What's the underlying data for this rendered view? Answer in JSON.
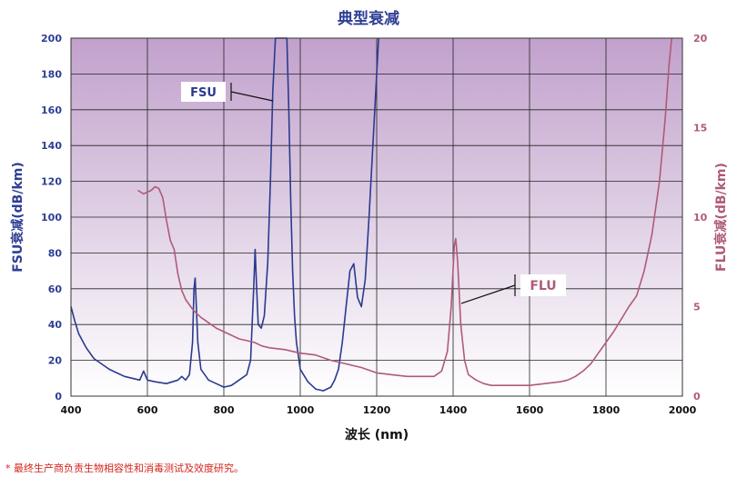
{
  "chart_data": {
    "type": "line",
    "title": "典型衰减",
    "xlabel": "波长 (nm)",
    "ylabel_left": "FSU衰减(dB/km)",
    "ylabel_right": "FLU衰减(dB/km)",
    "xlim": [
      400,
      2000
    ],
    "ylim_left": [
      0,
      200
    ],
    "ylim_right": [
      0,
      20
    ],
    "x_ticks": [
      400,
      600,
      800,
      1000,
      1200,
      1400,
      1600,
      1800,
      2000
    ],
    "y_ticks_left": [
      0,
      20,
      40,
      60,
      80,
      100,
      120,
      140,
      160,
      180,
      200
    ],
    "y_ticks_right": [
      0,
      5,
      10,
      15,
      20
    ],
    "grid": true,
    "background": "gradient purple (top) to white (bottom)",
    "series": [
      {
        "name": "FSU",
        "axis": "left",
        "color": "#2a3a8f",
        "points": [
          [
            400,
            50
          ],
          [
            410,
            42
          ],
          [
            420,
            35
          ],
          [
            440,
            27
          ],
          [
            460,
            21
          ],
          [
            480,
            18
          ],
          [
            500,
            15
          ],
          [
            520,
            13
          ],
          [
            540,
            11
          ],
          [
            560,
            10
          ],
          [
            580,
            9
          ],
          [
            590,
            14
          ],
          [
            600,
            9
          ],
          [
            620,
            8
          ],
          [
            650,
            7
          ],
          [
            680,
            9
          ],
          [
            690,
            11
          ],
          [
            700,
            9
          ],
          [
            710,
            12
          ],
          [
            718,
            30
          ],
          [
            722,
            60
          ],
          [
            725,
            66
          ],
          [
            728,
            50
          ],
          [
            732,
            30
          ],
          [
            740,
            15
          ],
          [
            760,
            9
          ],
          [
            780,
            7
          ],
          [
            800,
            5
          ],
          [
            820,
            6
          ],
          [
            840,
            9
          ],
          [
            860,
            12
          ],
          [
            870,
            20
          ],
          [
            878,
            60
          ],
          [
            882,
            82
          ],
          [
            886,
            60
          ],
          [
            890,
            40
          ],
          [
            898,
            38
          ],
          [
            906,
            45
          ],
          [
            915,
            75
          ],
          [
            922,
            120
          ],
          [
            928,
            170
          ],
          [
            935,
            200
          ],
          [
            965,
            200
          ],
          [
            970,
            160
          ],
          [
            975,
            110
          ],
          [
            980,
            70
          ],
          [
            985,
            45
          ],
          [
            990,
            30
          ],
          [
            1000,
            15
          ],
          [
            1020,
            8
          ],
          [
            1040,
            4
          ],
          [
            1060,
            3
          ],
          [
            1080,
            5
          ],
          [
            1090,
            9
          ],
          [
            1100,
            15
          ],
          [
            1110,
            30
          ],
          [
            1120,
            50
          ],
          [
            1130,
            70
          ],
          [
            1140,
            74
          ],
          [
            1150,
            55
          ],
          [
            1160,
            50
          ],
          [
            1170,
            65
          ],
          [
            1180,
            100
          ],
          [
            1190,
            140
          ],
          [
            1200,
            180
          ],
          [
            1205,
            200
          ]
        ]
      },
      {
        "name": "FLU",
        "axis": "right",
        "color": "#b05a7a",
        "points": [
          [
            575,
            11.5
          ],
          [
            590,
            11.3
          ],
          [
            600,
            11.4
          ],
          [
            610,
            11.5
          ],
          [
            620,
            11.7
          ],
          [
            630,
            11.6
          ],
          [
            640,
            11.1
          ],
          [
            650,
            9.8
          ],
          [
            660,
            8.7
          ],
          [
            670,
            8.2
          ],
          [
            680,
            6.8
          ],
          [
            690,
            5.9
          ],
          [
            700,
            5.4
          ],
          [
            720,
            4.8
          ],
          [
            740,
            4.4
          ],
          [
            760,
            4.1
          ],
          [
            780,
            3.8
          ],
          [
            800,
            3.6
          ],
          [
            820,
            3.4
          ],
          [
            840,
            3.2
          ],
          [
            860,
            3.1
          ],
          [
            880,
            3.0
          ],
          [
            900,
            2.8
          ],
          [
            920,
            2.7
          ],
          [
            960,
            2.6
          ],
          [
            1000,
            2.4
          ],
          [
            1040,
            2.3
          ],
          [
            1080,
            2.0
          ],
          [
            1120,
            1.8
          ],
          [
            1160,
            1.6
          ],
          [
            1200,
            1.3
          ],
          [
            1240,
            1.2
          ],
          [
            1280,
            1.1
          ],
          [
            1320,
            1.1
          ],
          [
            1350,
            1.1
          ],
          [
            1370,
            1.4
          ],
          [
            1385,
            2.5
          ],
          [
            1395,
            5.0
          ],
          [
            1403,
            8.4
          ],
          [
            1407,
            8.8
          ],
          [
            1412,
            7.5
          ],
          [
            1420,
            4.0
          ],
          [
            1430,
            2.0
          ],
          [
            1440,
            1.2
          ],
          [
            1460,
            0.9
          ],
          [
            1480,
            0.7
          ],
          [
            1500,
            0.6
          ],
          [
            1520,
            0.6
          ],
          [
            1560,
            0.6
          ],
          [
            1600,
            0.6
          ],
          [
            1640,
            0.7
          ],
          [
            1680,
            0.8
          ],
          [
            1700,
            0.9
          ],
          [
            1720,
            1.1
          ],
          [
            1740,
            1.4
          ],
          [
            1760,
            1.8
          ],
          [
            1780,
            2.4
          ],
          [
            1800,
            3.0
          ],
          [
            1820,
            3.6
          ],
          [
            1840,
            4.3
          ],
          [
            1860,
            5.0
          ],
          [
            1880,
            5.6
          ],
          [
            1900,
            7.0
          ],
          [
            1920,
            9.0
          ],
          [
            1940,
            12.0
          ],
          [
            1955,
            15.5
          ],
          [
            1965,
            18.5
          ],
          [
            1972,
            20
          ]
        ]
      }
    ],
    "annotations": [
      {
        "label": "FSU",
        "series": "FSU"
      },
      {
        "label": "FLU",
        "series": "FLU"
      }
    ],
    "footnote": "* 最终生产商负责生物相容性和消毒测试及效度研究。"
  }
}
